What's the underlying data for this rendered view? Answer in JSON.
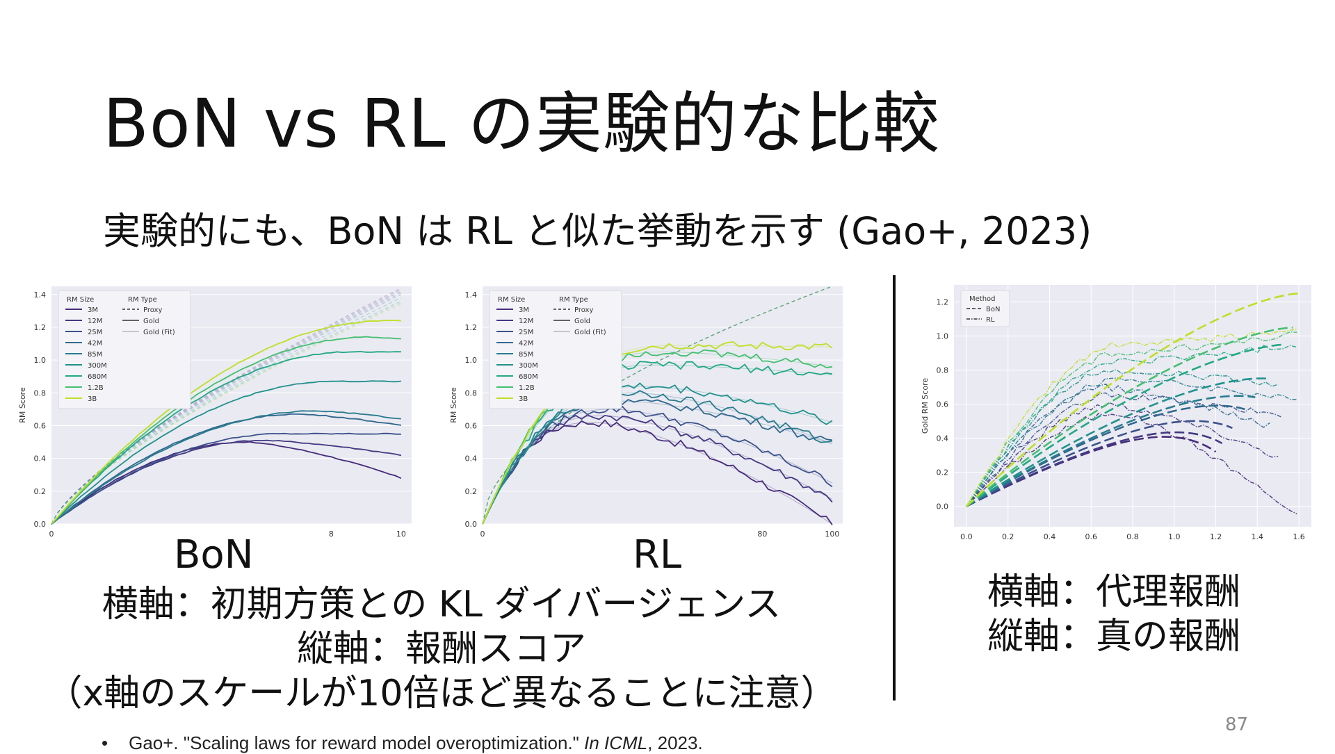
{
  "slide": {
    "title": "BoN vs RL の実験的な比較",
    "subtitle": "実験的にも、BoN は RL と似た挙動を示す (Gao+, 2023)",
    "bon_label": "BoN",
    "rl_label": "RL",
    "caption_lines": [
      "横軸：初期方策との KL ダイバージェンス",
      "縦軸：報酬スコア",
      "（x軸のスケールが10倍ほど異なることに注意）"
    ],
    "right_caption_lines": [
      "横軸：代理報酬",
      "縦軸：真の報酬"
    ],
    "page_number": "87",
    "reference": {
      "bullet": "•",
      "text_before": "Gao+. \"Scaling laws for reward model overoptimization.\" ",
      "venue": "In ICML",
      "text_after": ", 2023."
    }
  },
  "colors": {
    "plot_bg": "#eaeaf2",
    "grid": "#ffffff",
    "palette": [
      "#472d7b",
      "#443983",
      "#3b528b",
      "#31688e",
      "#287c8e",
      "#21918c",
      "#22a884",
      "#44bf70",
      "#bddf26"
    ]
  },
  "chart_data": [
    {
      "type": "line",
      "panel": "BoN",
      "xlabel": "",
      "ylabel": "RM Score",
      "x_ticks": [
        "0",
        "8",
        "10"
      ],
      "y_ticks": [
        "0.0",
        "0.2",
        "0.4",
        "0.6",
        "0.8",
        "1.0",
        "1.2",
        "1.4"
      ],
      "ylim": [
        0,
        1.45
      ],
      "xlim": [
        0,
        10.3
      ],
      "grid": true,
      "legend_position": "top-left",
      "legend": {
        "size_title": "RM Size",
        "sizes": [
          "3M",
          "12M",
          "25M",
          "42M",
          "85M",
          "300M",
          "680M",
          "1.2B",
          "3B"
        ],
        "type_title": "RM Type",
        "types": [
          "Proxy",
          "Gold",
          "Gold (Fit)"
        ]
      },
      "x_max": 10,
      "gold_peaks": [
        0.5,
        0.51,
        0.55,
        0.67,
        0.69,
        0.87,
        1.05,
        1.14,
        1.24
      ],
      "gold_ends": [
        0.28,
        0.42,
        0.55,
        0.6,
        0.64,
        0.87,
        1.05,
        1.13,
        1.24
      ],
      "proxy_ends": [
        1.44,
        1.43,
        1.42,
        1.41,
        1.4,
        1.38,
        1.36,
        1.35,
        1.34
      ]
    },
    {
      "type": "line",
      "panel": "RL",
      "xlabel": "",
      "ylabel": "RM Score",
      "x_ticks": [
        "0",
        "80",
        "100"
      ],
      "y_ticks": [
        "0.0",
        "0.2",
        "0.4",
        "0.6",
        "0.8",
        "1.0",
        "1.2",
        "1.4"
      ],
      "ylim": [
        0,
        1.45
      ],
      "xlim": [
        0,
        103
      ],
      "grid": true,
      "legend_position": "top-left",
      "legend": {
        "size_title": "RM Size",
        "sizes": [
          "3M",
          "12M",
          "25M",
          "42M",
          "85M",
          "300M",
          "680M",
          "1.2B",
          "3B"
        ],
        "type_title": "RM Type",
        "types": [
          "Proxy",
          "Gold",
          "Gold (Fit)"
        ]
      },
      "x_max": 100,
      "gold_peaks": [
        0.62,
        0.66,
        0.7,
        0.75,
        0.8,
        0.84,
        0.97,
        1.05,
        1.09
      ],
      "gold_ends": [
        0.0,
        0.15,
        0.25,
        0.49,
        0.49,
        0.62,
        0.91,
        0.96,
        1.08
      ],
      "proxy_ends": [
        1.45,
        1.45,
        1.45,
        1.45,
        1.45,
        1.45,
        1.45,
        1.45,
        1.45
      ]
    },
    {
      "type": "line",
      "panel": "comparison",
      "xlabel": "",
      "ylabel": "Gold RM Score",
      "x_ticks": [
        "0.0",
        "0.2",
        "0.4",
        "0.6",
        "0.8",
        "1.0",
        "1.2",
        "1.4",
        "1.6"
      ],
      "y_ticks": [
        "0.0",
        "0.2",
        "0.4",
        "0.6",
        "0.8",
        "1.0",
        "1.2"
      ],
      "xlim": [
        -0.06,
        1.66
      ],
      "ylim": [
        -0.12,
        1.3
      ],
      "grid": true,
      "legend_position": "top-left",
      "legend": {
        "title": "Method",
        "entries": [
          "BoN",
          "RL"
        ]
      },
      "bon_x_ends": [
        1.2,
        1.23,
        1.28,
        1.34,
        1.39,
        1.45,
        1.53,
        1.57,
        1.6
      ],
      "bon_peaks": [
        0.5,
        0.52,
        0.58,
        0.66,
        0.7,
        0.78,
        0.95,
        1.05,
        1.25
      ],
      "rl_x_ends": [
        1.59,
        1.5,
        1.52,
        1.46,
        1.59,
        1.5,
        1.59,
        1.59,
        1.59
      ],
      "rl_ends": [
        -0.06,
        0.29,
        0.53,
        0.47,
        0.62,
        0.72,
        0.95,
        1.01,
        1.04
      ]
    }
  ]
}
